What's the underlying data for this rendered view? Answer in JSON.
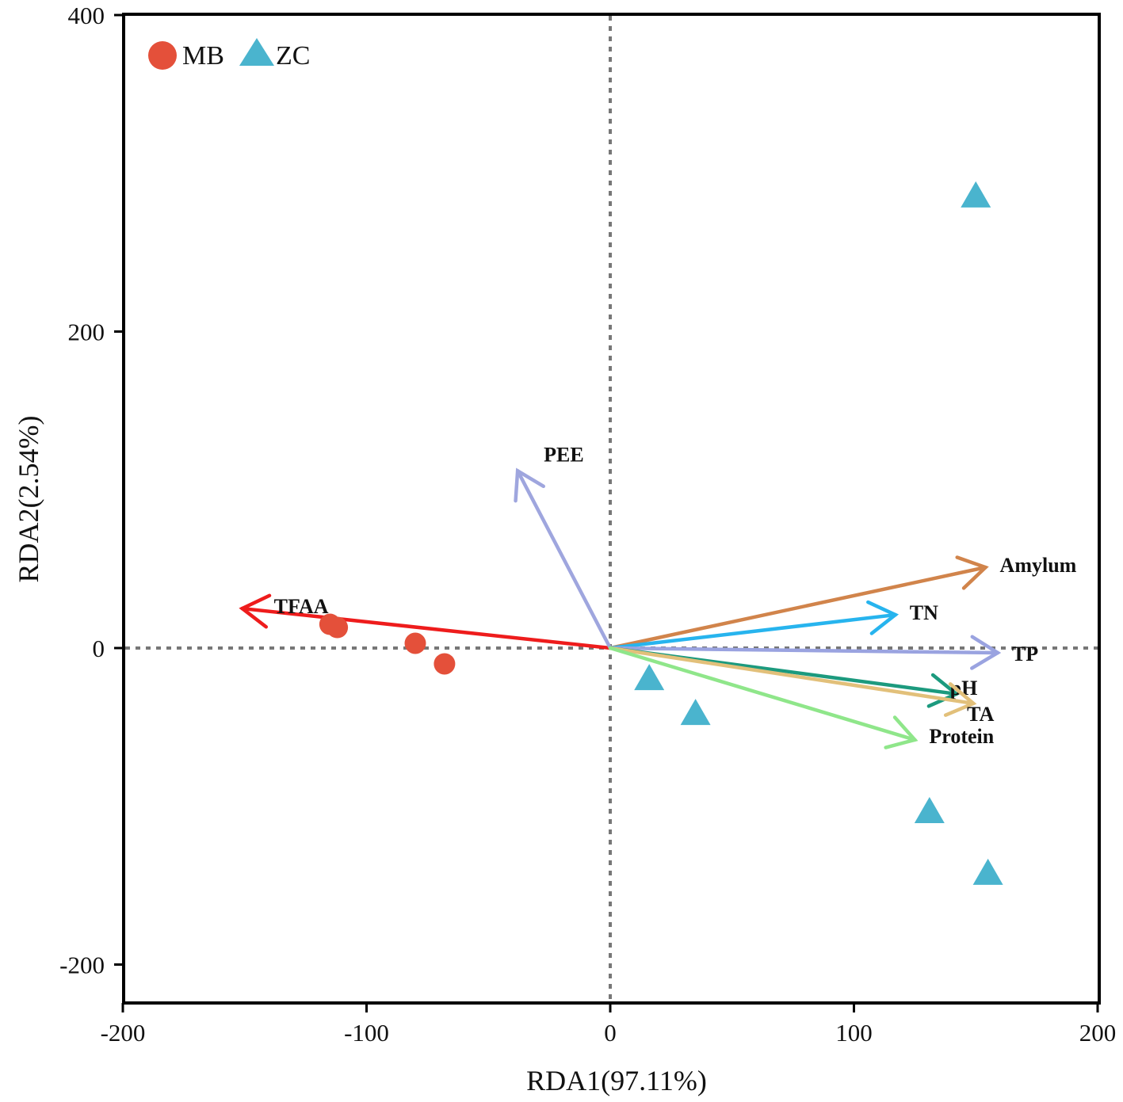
{
  "chart_data": {
    "type": "scatter",
    "xlabel": "RDA1(97.11%)",
    "ylabel": "RDA2(2.54%)",
    "xlim": [
      -200,
      200
    ],
    "ylim": [
      -225,
      400
    ],
    "xticks": [
      -200,
      -100,
      0,
      100,
      200
    ],
    "yticks": [
      -200,
      0,
      200,
      400
    ],
    "reference_lines": {
      "x": 0,
      "y": 0
    },
    "legend": [
      {
        "name": "MB",
        "marker": "circle",
        "color": "#e4503a"
      },
      {
        "name": "ZC",
        "marker": "triangle",
        "color": "#4ab4ce"
      }
    ],
    "series": [
      {
        "name": "MB",
        "marker": "circle",
        "color": "#e4503a",
        "points": [
          [
            -115,
            15
          ],
          [
            -112,
            13
          ],
          [
            -80,
            3
          ],
          [
            -68,
            -10
          ]
        ]
      },
      {
        "name": "ZC",
        "marker": "triangle",
        "color": "#4ab4ce",
        "points": [
          [
            150,
            285
          ],
          [
            16,
            -20
          ],
          [
            35,
            -42
          ],
          [
            131,
            -104
          ],
          [
            155,
            -143
          ]
        ]
      }
    ],
    "vectors": [
      {
        "name": "TFAA",
        "x": -151,
        "y": 25,
        "color": "#ee1c1c"
      },
      {
        "name": "PEE",
        "x": -38,
        "y": 112,
        "color": "#9fa6de"
      },
      {
        "name": "Amylum",
        "x": 154,
        "y": 51,
        "color": "#d1844b"
      },
      {
        "name": "TN",
        "x": 117,
        "y": 21,
        "color": "#27b4ee"
      },
      {
        "name": "TP",
        "x": 159,
        "y": -3,
        "color": "#9aa3e0"
      },
      {
        "name": "pH",
        "x": 142,
        "y": -29,
        "color": "#1c9a7e"
      },
      {
        "name": "TA",
        "x": 149,
        "y": -35,
        "color": "#e2c07a"
      },
      {
        "name": "Protein",
        "x": 125,
        "y": -58,
        "color": "#8fe68a"
      }
    ]
  }
}
